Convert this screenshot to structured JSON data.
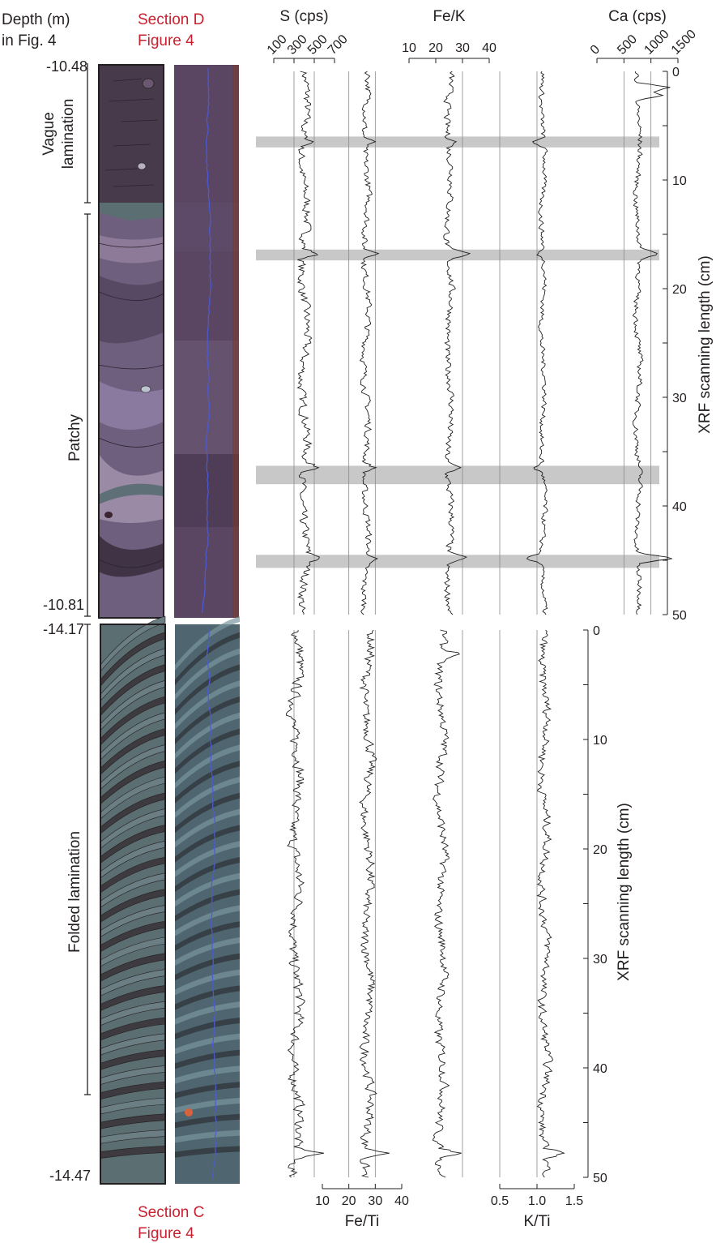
{
  "labels": {
    "depth_header_1": "Depth (m)",
    "depth_header_2": "in Fig. 4",
    "section_d_1": "Section D",
    "section_d_2": "Figure 4",
    "section_c_1": "Section C",
    "section_c_2": "Figure 4",
    "unit_vague": "Vague\nlamination",
    "unit_patchy": "Patchy",
    "unit_folded": "Folded lamination",
    "depth_d_top": "-10.48",
    "depth_d_bottom": "-10.81",
    "depth_c_top": "-14.17",
    "depth_c_bottom": "-14.47"
  },
  "colors": {
    "text_red": "#c8202f",
    "curve": "#231f20",
    "highlight_band": "#c8c8c8",
    "reference_line": "#8a8a8a",
    "section_d_drawing": "#6e5f7e",
    "section_c_drawing": "#5b6e72",
    "scan_trace": "#4b5bd8"
  },
  "chart_data": [
    {
      "type": "line",
      "panel": "S (cps)",
      "title": "S (cps)",
      "axis_position": "top",
      "ticks": [
        100,
        300,
        500,
        700
      ],
      "xlim": [
        100,
        700
      ],
      "reference_lines": [
        300,
        500
      ],
      "y_label": "XRF scanning length (cm)",
      "y_ticks": [
        0,
        10,
        20,
        30,
        40,
        50
      ],
      "ylim": [
        0,
        50
      ],
      "section_d": {
        "baseline": 400,
        "amplitude": 75,
        "spikes": [
          [
            6.5,
            520
          ],
          [
            16.8,
            560
          ],
          [
            36.5,
            560
          ],
          [
            44.8,
            560
          ]
        ]
      },
      "section_c": {
        "baseline": 320,
        "amplitude": 90,
        "spikes": [
          [
            47.8,
            600
          ]
        ]
      }
    },
    {
      "type": "line",
      "panel": "Fe/Ti",
      "title": "Fe/Ti",
      "axis_position": "bottom",
      "ticks": [
        10,
        20,
        30,
        40
      ],
      "xlim": [
        10,
        40
      ],
      "reference_lines": [
        20,
        30
      ],
      "section_d": {
        "baseline": 26.5,
        "amplitude": 2.2,
        "spikes": [
          [
            6.5,
            30
          ],
          [
            16.8,
            33
          ],
          [
            36.5,
            30.5
          ],
          [
            44.8,
            30
          ]
        ]
      },
      "section_c": {
        "baseline": 27,
        "amplitude": 3.2,
        "spikes": [
          [
            47.8,
            36
          ]
        ]
      }
    },
    {
      "type": "line",
      "panel": "Fe/K",
      "title": "Fe/K",
      "axis_position": "top",
      "ticks": [
        10,
        20,
        30,
        40
      ],
      "xlim": [
        10,
        40
      ],
      "reference_lines": [
        30
      ],
      "section_d": {
        "baseline": 25,
        "amplitude": 2.2,
        "spikes": [
          [
            6.5,
            28
          ],
          [
            16.8,
            33
          ],
          [
            36.5,
            30
          ],
          [
            44.8,
            32
          ]
        ]
      },
      "section_c": {
        "baseline": 22,
        "amplitude": 3.0,
        "spikes": [
          [
            2.2,
            30
          ],
          [
            47.8,
            30
          ]
        ]
      }
    },
    {
      "type": "line",
      "panel": "K/Ti",
      "title": "K/Ti",
      "axis_position": "bottom",
      "ticks": [
        0.5,
        1.0,
        1.5
      ],
      "xlim": [
        0.5,
        1.5
      ],
      "reference_lines": [
        0.5,
        1.0
      ],
      "section_d": {
        "baseline": 1.08,
        "amplitude": 0.06,
        "spikes": [
          [
            6.5,
            0.92
          ],
          [
            16.8,
            0.98
          ],
          [
            36.5,
            0.96
          ],
          [
            44.8,
            0.85
          ]
        ]
      },
      "section_c": {
        "baseline": 1.1,
        "amplitude": 0.1,
        "spikes": [
          [
            47.8,
            1.4
          ]
        ]
      }
    },
    {
      "type": "line",
      "panel": "Ca (cps)",
      "title": "Ca (cps)",
      "axis_position": "top",
      "ticks": [
        0,
        500,
        1000,
        1500
      ],
      "xlim": [
        0,
        1500
      ],
      "reference_lines": [
        500,
        1000
      ],
      "section_d": {
        "baseline": 760,
        "amplitude": 90,
        "spikes": [
          [
            1.5,
            1400
          ],
          [
            2.2,
            1300
          ],
          [
            16.8,
            1150
          ],
          [
            44.8,
            1450
          ]
        ]
      },
      "section_c": null
    }
  ],
  "highlight_bands_cm": [
    [
      6.0,
      7.0
    ],
    [
      16.4,
      17.4
    ],
    [
      36.3,
      38.0
    ],
    [
      44.5,
      45.7
    ]
  ]
}
